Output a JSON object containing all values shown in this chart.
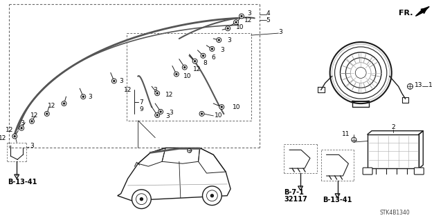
{
  "background_color": "#ffffff",
  "fig_width": 6.4,
  "fig_height": 3.19,
  "dpi": 100,
  "labels": {
    "fr_label": "FR.",
    "b1341_left": "B-13-41",
    "b71": "B-7-1",
    "b32117": "32117",
    "b1341_right": "B-13-41",
    "stk": "STK4B1340"
  },
  "line_color": "#1a1a1a",
  "text_color": "#000000",
  "gray_color": "#888888",
  "lt_gray": "#cccccc",
  "harness_color": "#555555",
  "connector_color": "#333333",
  "dashed_color": "#666666",
  "numbers": {
    "left_box_top_num": [
      "4",
      "5"
    ],
    "left_box_right_nums": [
      "3",
      "12",
      "10",
      "3",
      "3",
      "6",
      "8",
      "12",
      "3",
      "10",
      "10"
    ],
    "inner_nums": [
      "12",
      "3",
      "12",
      "7",
      "9"
    ],
    "outer_left_nums": [
      "3",
      "12",
      "12",
      "3"
    ]
  }
}
